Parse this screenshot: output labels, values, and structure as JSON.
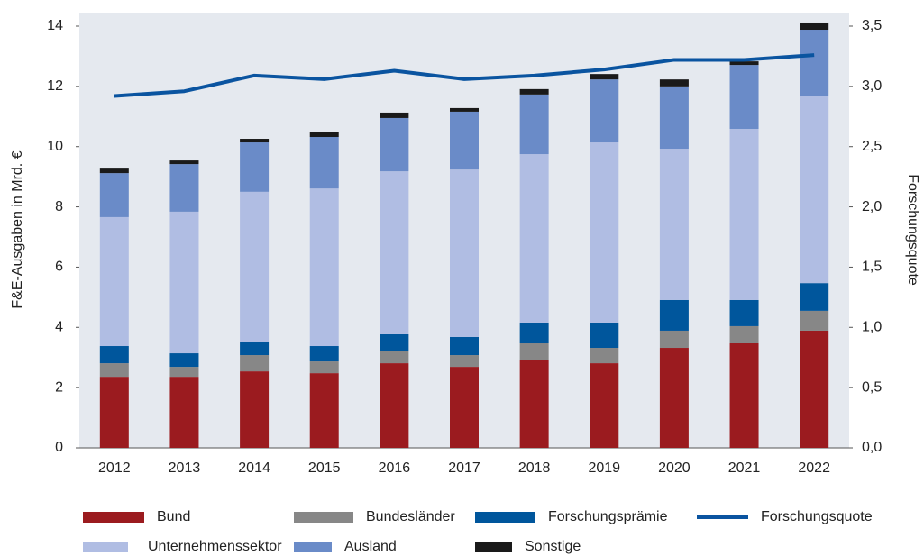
{
  "chart_data": {
    "type": "bar",
    "stacked": true,
    "ylabel": "F&E-Ausgaben in Mrd. €",
    "y2label": "Forschungsquote",
    "categories": [
      "2012",
      "2013",
      "2014",
      "2015",
      "2016",
      "2017",
      "2018",
      "2019",
      "2020",
      "2021",
      "2022"
    ],
    "series": [
      {
        "name": "Bund",
        "color": "#9b1b1f",
        "values": [
          2.36,
          2.36,
          2.54,
          2.48,
          2.81,
          2.69,
          2.93,
          2.81,
          3.32,
          3.47,
          3.89
        ]
      },
      {
        "name": "Bundesländer",
        "color": "#878787",
        "values": [
          0.45,
          0.33,
          0.54,
          0.39,
          0.42,
          0.39,
          0.54,
          0.51,
          0.57,
          0.57,
          0.66
        ]
      },
      {
        "name": "Forschungsprämie",
        "color": "#00569c",
        "values": [
          0.57,
          0.45,
          0.42,
          0.51,
          0.54,
          0.6,
          0.69,
          0.84,
          1.02,
          0.87,
          0.92
        ]
      },
      {
        "name": "Forschungsquote",
        "type": "line",
        "axis": "y2",
        "color": "#0a54a0",
        "values": [
          2.92,
          2.96,
          3.09,
          3.06,
          3.13,
          3.06,
          3.09,
          3.14,
          3.22,
          3.22,
          3.26
        ]
      },
      {
        "name": "Unternehmenssektor",
        "color": "#b0bde3",
        "values": [
          4.28,
          4.7,
          5.0,
          5.23,
          5.41,
          5.56,
          5.59,
          5.98,
          5.02,
          5.68,
          6.2
        ]
      },
      {
        "name": "Ausland",
        "color": "#6a8bc8",
        "values": [
          1.46,
          1.58,
          1.64,
          1.71,
          1.77,
          1.92,
          1.98,
          2.09,
          2.07,
          2.12,
          2.21
        ]
      },
      {
        "name": "Sonstige",
        "color": "#1a1a1a",
        "values": [
          0.18,
          0.12,
          0.12,
          0.18,
          0.18,
          0.12,
          0.18,
          0.18,
          0.23,
          0.12,
          0.24
        ]
      }
    ],
    "ylim": [
      0,
      14
    ],
    "yticks": [
      0,
      2,
      4,
      6,
      8,
      10,
      12,
      14
    ],
    "y2lim": [
      0,
      3.5
    ],
    "y2ticks": [
      {
        "value": 0,
        "label": "0,0"
      },
      {
        "value": 0.5,
        "label": "0,5"
      },
      {
        "value": 1,
        "label": "1,0"
      },
      {
        "value": 1.5,
        "label": "1,5"
      },
      {
        "value": 2,
        "label": "2,0"
      },
      {
        "value": 2.5,
        "label": "2,5"
      },
      {
        "value": 3,
        "label": "3,0"
      },
      {
        "value": 3.5,
        "label": "3,5"
      }
    ],
    "legend": "bottom"
  }
}
